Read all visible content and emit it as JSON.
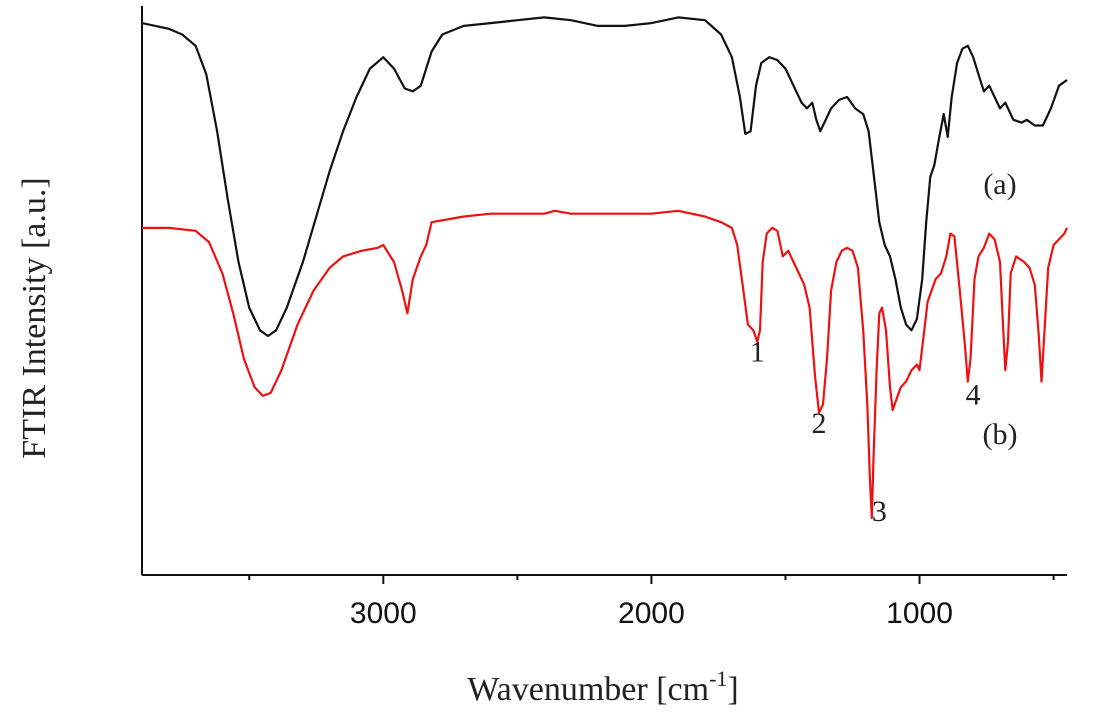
{
  "chart_data": {
    "type": "line",
    "title": "",
    "xlabel": "Wavenumber [cm",
    "xlabel_sup": "-1",
    "xlabel_close": "]",
    "ylabel": "FTIR Intensity [a.u.]",
    "xlim": [
      3900,
      450
    ],
    "x_reversed": true,
    "xticks": [
      3000,
      2000,
      1000
    ],
    "xtick_labels": [
      "3000",
      "2000",
      "1000"
    ],
    "x_minor_ticks": [
      3500,
      2500,
      1500,
      500
    ],
    "y_ticks_shown": false,
    "grid": false,
    "colors": {
      "a": "#111111",
      "b": "#ee1111"
    },
    "series": [
      {
        "name": "(a)",
        "color": "#111111",
        "points": [
          [
            3900,
            0.97
          ],
          [
            3800,
            0.96
          ],
          [
            3750,
            0.95
          ],
          [
            3700,
            0.93
          ],
          [
            3660,
            0.88
          ],
          [
            3620,
            0.78
          ],
          [
            3580,
            0.66
          ],
          [
            3540,
            0.55
          ],
          [
            3500,
            0.47
          ],
          [
            3460,
            0.43
          ],
          [
            3430,
            0.42
          ],
          [
            3400,
            0.43
          ],
          [
            3360,
            0.47
          ],
          [
            3300,
            0.55
          ],
          [
            3250,
            0.63
          ],
          [
            3200,
            0.71
          ],
          [
            3150,
            0.78
          ],
          [
            3100,
            0.84
          ],
          [
            3050,
            0.89
          ],
          [
            3000,
            0.91
          ],
          [
            2960,
            0.89
          ],
          [
            2920,
            0.855
          ],
          [
            2890,
            0.85
          ],
          [
            2860,
            0.86
          ],
          [
            2820,
            0.92
          ],
          [
            2780,
            0.95
          ],
          [
            2700,
            0.965
          ],
          [
            2600,
            0.97
          ],
          [
            2500,
            0.975
          ],
          [
            2400,
            0.98
          ],
          [
            2300,
            0.975
          ],
          [
            2200,
            0.965
          ],
          [
            2100,
            0.965
          ],
          [
            2000,
            0.97
          ],
          [
            1900,
            0.98
          ],
          [
            1800,
            0.975
          ],
          [
            1740,
            0.95
          ],
          [
            1700,
            0.91
          ],
          [
            1670,
            0.84
          ],
          [
            1650,
            0.775
          ],
          [
            1630,
            0.78
          ],
          [
            1610,
            0.86
          ],
          [
            1590,
            0.9
          ],
          [
            1560,
            0.91
          ],
          [
            1530,
            0.905
          ],
          [
            1500,
            0.89
          ],
          [
            1470,
            0.86
          ],
          [
            1440,
            0.83
          ],
          [
            1420,
            0.82
          ],
          [
            1400,
            0.83
          ],
          [
            1385,
            0.8
          ],
          [
            1370,
            0.78
          ],
          [
            1350,
            0.8
          ],
          [
            1330,
            0.82
          ],
          [
            1300,
            0.835
          ],
          [
            1270,
            0.84
          ],
          [
            1240,
            0.82
          ],
          [
            1210,
            0.81
          ],
          [
            1190,
            0.78
          ],
          [
            1170,
            0.7
          ],
          [
            1150,
            0.62
          ],
          [
            1130,
            0.58
          ],
          [
            1110,
            0.56
          ],
          [
            1090,
            0.52
          ],
          [
            1070,
            0.47
          ],
          [
            1050,
            0.44
          ],
          [
            1030,
            0.43
          ],
          [
            1010,
            0.45
          ],
          [
            990,
            0.52
          ],
          [
            975,
            0.62
          ],
          [
            960,
            0.7
          ],
          [
            945,
            0.72
          ],
          [
            930,
            0.76
          ],
          [
            910,
            0.81
          ],
          [
            895,
            0.77
          ],
          [
            880,
            0.84
          ],
          [
            860,
            0.9
          ],
          [
            840,
            0.925
          ],
          [
            820,
            0.93
          ],
          [
            800,
            0.91
          ],
          [
            780,
            0.88
          ],
          [
            760,
            0.85
          ],
          [
            740,
            0.86
          ],
          [
            720,
            0.84
          ],
          [
            700,
            0.82
          ],
          [
            680,
            0.83
          ],
          [
            650,
            0.8
          ],
          [
            620,
            0.795
          ],
          [
            600,
            0.8
          ],
          [
            570,
            0.79
          ],
          [
            540,
            0.79
          ],
          [
            510,
            0.82
          ],
          [
            480,
            0.86
          ],
          [
            450,
            0.87
          ]
        ]
      },
      {
        "name": "(b)",
        "color": "#ee1111",
        "points": [
          [
            3900,
            0.61
          ],
          [
            3800,
            0.61
          ],
          [
            3700,
            0.605
          ],
          [
            3650,
            0.585
          ],
          [
            3600,
            0.53
          ],
          [
            3560,
            0.46
          ],
          [
            3520,
            0.38
          ],
          [
            3480,
            0.33
          ],
          [
            3450,
            0.315
          ],
          [
            3420,
            0.32
          ],
          [
            3380,
            0.36
          ],
          [
            3320,
            0.44
          ],
          [
            3260,
            0.5
          ],
          [
            3200,
            0.54
          ],
          [
            3150,
            0.56
          ],
          [
            3080,
            0.57
          ],
          [
            3020,
            0.575
          ],
          [
            3000,
            0.58
          ],
          [
            2960,
            0.55
          ],
          [
            2930,
            0.5
          ],
          [
            2910,
            0.46
          ],
          [
            2890,
            0.52
          ],
          [
            2860,
            0.56
          ],
          [
            2840,
            0.58
          ],
          [
            2820,
            0.62
          ],
          [
            2700,
            0.63
          ],
          [
            2600,
            0.635
          ],
          [
            2500,
            0.635
          ],
          [
            2400,
            0.635
          ],
          [
            2360,
            0.64
          ],
          [
            2300,
            0.635
          ],
          [
            2200,
            0.635
          ],
          [
            2100,
            0.635
          ],
          [
            2000,
            0.635
          ],
          [
            1900,
            0.64
          ],
          [
            1800,
            0.63
          ],
          [
            1740,
            0.62
          ],
          [
            1700,
            0.61
          ],
          [
            1680,
            0.58
          ],
          [
            1660,
            0.51
          ],
          [
            1640,
            0.44
          ],
          [
            1620,
            0.43
          ],
          [
            1605,
            0.41
          ],
          [
            1595,
            0.43
          ],
          [
            1585,
            0.55
          ],
          [
            1570,
            0.6
          ],
          [
            1550,
            0.61
          ],
          [
            1530,
            0.605
          ],
          [
            1510,
            0.56
          ],
          [
            1490,
            0.57
          ],
          [
            1470,
            0.55
          ],
          [
            1450,
            0.53
          ],
          [
            1430,
            0.51
          ],
          [
            1410,
            0.47
          ],
          [
            1390,
            0.35
          ],
          [
            1375,
            0.285
          ],
          [
            1360,
            0.3
          ],
          [
            1345,
            0.38
          ],
          [
            1330,
            0.5
          ],
          [
            1310,
            0.55
          ],
          [
            1290,
            0.57
          ],
          [
            1270,
            0.575
          ],
          [
            1250,
            0.57
          ],
          [
            1230,
            0.54
          ],
          [
            1210,
            0.43
          ],
          [
            1195,
            0.3
          ],
          [
            1185,
            0.17
          ],
          [
            1178,
            0.1
          ],
          [
            1172,
            0.2
          ],
          [
            1160,
            0.36
          ],
          [
            1150,
            0.46
          ],
          [
            1140,
            0.47
          ],
          [
            1125,
            0.43
          ],
          [
            1110,
            0.33
          ],
          [
            1100,
            0.29
          ],
          [
            1085,
            0.31
          ],
          [
            1070,
            0.33
          ],
          [
            1050,
            0.34
          ],
          [
            1030,
            0.36
          ],
          [
            1010,
            0.37
          ],
          [
            1000,
            0.36
          ],
          [
            985,
            0.42
          ],
          [
            970,
            0.48
          ],
          [
            955,
            0.5
          ],
          [
            940,
            0.52
          ],
          [
            920,
            0.53
          ],
          [
            900,
            0.56
          ],
          [
            885,
            0.6
          ],
          [
            870,
            0.595
          ],
          [
            850,
            0.5
          ],
          [
            830,
            0.4
          ],
          [
            820,
            0.34
          ],
          [
            810,
            0.38
          ],
          [
            795,
            0.52
          ],
          [
            780,
            0.56
          ],
          [
            760,
            0.575
          ],
          [
            740,
            0.6
          ],
          [
            720,
            0.59
          ],
          [
            700,
            0.55
          ],
          [
            690,
            0.45
          ],
          [
            680,
            0.36
          ],
          [
            670,
            0.41
          ],
          [
            660,
            0.53
          ],
          [
            640,
            0.56
          ],
          [
            610,
            0.55
          ],
          [
            590,
            0.54
          ],
          [
            570,
            0.51
          ],
          [
            555,
            0.42
          ],
          [
            545,
            0.34
          ],
          [
            535,
            0.42
          ],
          [
            520,
            0.54
          ],
          [
            500,
            0.58
          ],
          [
            480,
            0.59
          ],
          [
            460,
            0.6
          ],
          [
            450,
            0.61
          ]
        ]
      }
    ],
    "annotations": [
      {
        "text": "(a)",
        "x": 700,
        "y": 0.67
      },
      {
        "text": "(b)",
        "x": 700,
        "y": 0.23
      },
      {
        "text": "1",
        "x": 1605,
        "y": 0.375
      },
      {
        "text": "2",
        "x": 1375,
        "y": 0.25
      },
      {
        "text": "3",
        "x": 1150,
        "y": 0.095
      },
      {
        "text": "4",
        "x": 800,
        "y": 0.3
      }
    ]
  }
}
